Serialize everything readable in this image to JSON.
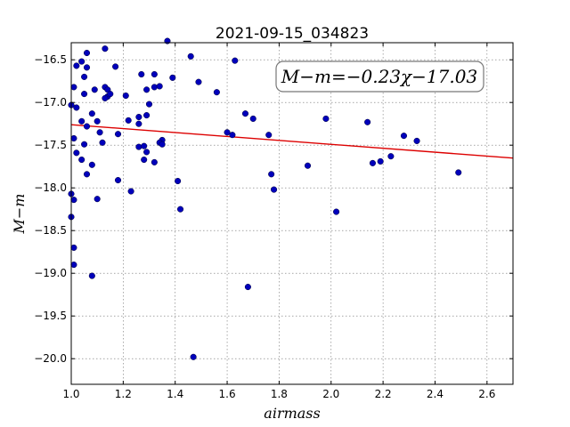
{
  "chart_data": {
    "type": "scatter",
    "title": "2021-09-15_034823",
    "xlabel": "airmass",
    "ylabel": "M−m",
    "xlim": [
      1.0,
      2.7
    ],
    "ylim": [
      -20.3,
      -16.3
    ],
    "x_ticks": [
      1.0,
      1.2,
      1.4,
      1.6,
      1.8,
      2.0,
      2.2,
      2.4,
      2.6
    ],
    "x_tick_labels": [
      "1.0",
      "1.2",
      "1.4",
      "1.6",
      "1.8",
      "2.0",
      "2.2",
      "2.4",
      "2.6"
    ],
    "y_ticks": [
      -16.5,
      -17.0,
      -17.5,
      -18.0,
      -18.5,
      -19.0,
      -19.5,
      -20.0
    ],
    "y_tick_labels": [
      "−16.5",
      "−17.0",
      "−17.5",
      "−18.0",
      "−18.5",
      "−19.0",
      "−19.5",
      "−20.0"
    ],
    "grid": true,
    "annotation": "M−m=−0.23χ−17.03",
    "fit": {
      "slope": -0.23,
      "intercept": -17.03,
      "color": "#dd0000"
    },
    "point_color": "#0000bb",
    "points": [
      {
        "x": 1.01,
        "y": -16.82
      },
      {
        "x": 1.02,
        "y": -16.57
      },
      {
        "x": 1.04,
        "y": -16.52
      },
      {
        "x": 1.06,
        "y": -16.42
      },
      {
        "x": 1.05,
        "y": -16.7
      },
      {
        "x": 1.06,
        "y": -16.59
      },
      {
        "x": 1.05,
        "y": -16.9
      },
      {
        "x": 1.09,
        "y": -16.85
      },
      {
        "x": 1.13,
        "y": -16.37
      },
      {
        "x": 1.17,
        "y": -16.58
      },
      {
        "x": 1.13,
        "y": -16.82
      },
      {
        "x": 1.14,
        "y": -16.85
      },
      {
        "x": 1.14,
        "y": -16.93
      },
      {
        "x": 1.13,
        "y": -16.95
      },
      {
        "x": 1.15,
        "y": -16.9
      },
      {
        "x": 1.21,
        "y": -16.92
      },
      {
        "x": 1.27,
        "y": -16.67
      },
      {
        "x": 1.29,
        "y": -16.85
      },
      {
        "x": 1.32,
        "y": -16.67
      },
      {
        "x": 1.32,
        "y": -16.82
      },
      {
        "x": 1.34,
        "y": -16.81
      },
      {
        "x": 1.37,
        "y": -16.28
      },
      {
        "x": 1.39,
        "y": -16.71
      },
      {
        "x": 1.46,
        "y": -16.46
      },
      {
        "x": 1.49,
        "y": -16.76
      },
      {
        "x": 1.56,
        "y": -16.88
      },
      {
        "x": 1.63,
        "y": -16.51
      },
      {
        "x": 1.0,
        "y": -17.03
      },
      {
        "x": 1.02,
        "y": -17.06
      },
      {
        "x": 1.04,
        "y": -17.22
      },
      {
        "x": 1.08,
        "y": -17.13
      },
      {
        "x": 1.06,
        "y": -17.28
      },
      {
        "x": 1.1,
        "y": -17.22
      },
      {
        "x": 1.01,
        "y": -17.42
      },
      {
        "x": 1.05,
        "y": -17.49
      },
      {
        "x": 1.11,
        "y": -17.35
      },
      {
        "x": 1.12,
        "y": -17.47
      },
      {
        "x": 1.18,
        "y": -17.37
      },
      {
        "x": 1.22,
        "y": -17.21
      },
      {
        "x": 1.26,
        "y": -17.17
      },
      {
        "x": 1.26,
        "y": -17.25
      },
      {
        "x": 1.29,
        "y": -17.15
      },
      {
        "x": 1.3,
        "y": -17.02
      },
      {
        "x": 1.35,
        "y": -17.44
      },
      {
        "x": 1.34,
        "y": -17.47
      },
      {
        "x": 1.35,
        "y": -17.49
      },
      {
        "x": 1.26,
        "y": -17.52
      },
      {
        "x": 1.28,
        "y": -17.51
      },
      {
        "x": 1.29,
        "y": -17.58
      },
      {
        "x": 1.02,
        "y": -17.59
      },
      {
        "x": 1.04,
        "y": -17.67
      },
      {
        "x": 1.08,
        "y": -17.73
      },
      {
        "x": 1.06,
        "y": -17.84
      },
      {
        "x": 1.28,
        "y": -17.67
      },
      {
        "x": 1.32,
        "y": -17.7
      },
      {
        "x": 1.18,
        "y": -17.91
      },
      {
        "x": 1.41,
        "y": -17.92
      },
      {
        "x": 1.23,
        "y": -18.04
      },
      {
        "x": 1.0,
        "y": -18.07
      },
      {
        "x": 1.01,
        "y": -18.14
      },
      {
        "x": 1.1,
        "y": -18.13
      },
      {
        "x": 1.42,
        "y": -18.25
      },
      {
        "x": 1.0,
        "y": -18.34
      },
      {
        "x": 1.01,
        "y": -18.7
      },
      {
        "x": 1.01,
        "y": -18.9
      },
      {
        "x": 1.08,
        "y": -19.03
      },
      {
        "x": 1.47,
        "y": -19.98
      },
      {
        "x": 1.67,
        "y": -17.13
      },
      {
        "x": 1.7,
        "y": -17.19
      },
      {
        "x": 1.6,
        "y": -17.35
      },
      {
        "x": 1.62,
        "y": -17.38
      },
      {
        "x": 1.76,
        "y": -17.38
      },
      {
        "x": 1.77,
        "y": -17.84
      },
      {
        "x": 1.78,
        "y": -18.02
      },
      {
        "x": 1.68,
        "y": -19.16
      },
      {
        "x": 1.91,
        "y": -17.74
      },
      {
        "x": 1.98,
        "y": -17.19
      },
      {
        "x": 2.02,
        "y": -18.28
      },
      {
        "x": 2.14,
        "y": -17.23
      },
      {
        "x": 2.16,
        "y": -17.71
      },
      {
        "x": 2.19,
        "y": -17.69
      },
      {
        "x": 2.23,
        "y": -17.63
      },
      {
        "x": 2.28,
        "y": -17.39
      },
      {
        "x": 2.33,
        "y": -17.45
      },
      {
        "x": 2.49,
        "y": -17.82
      }
    ]
  }
}
